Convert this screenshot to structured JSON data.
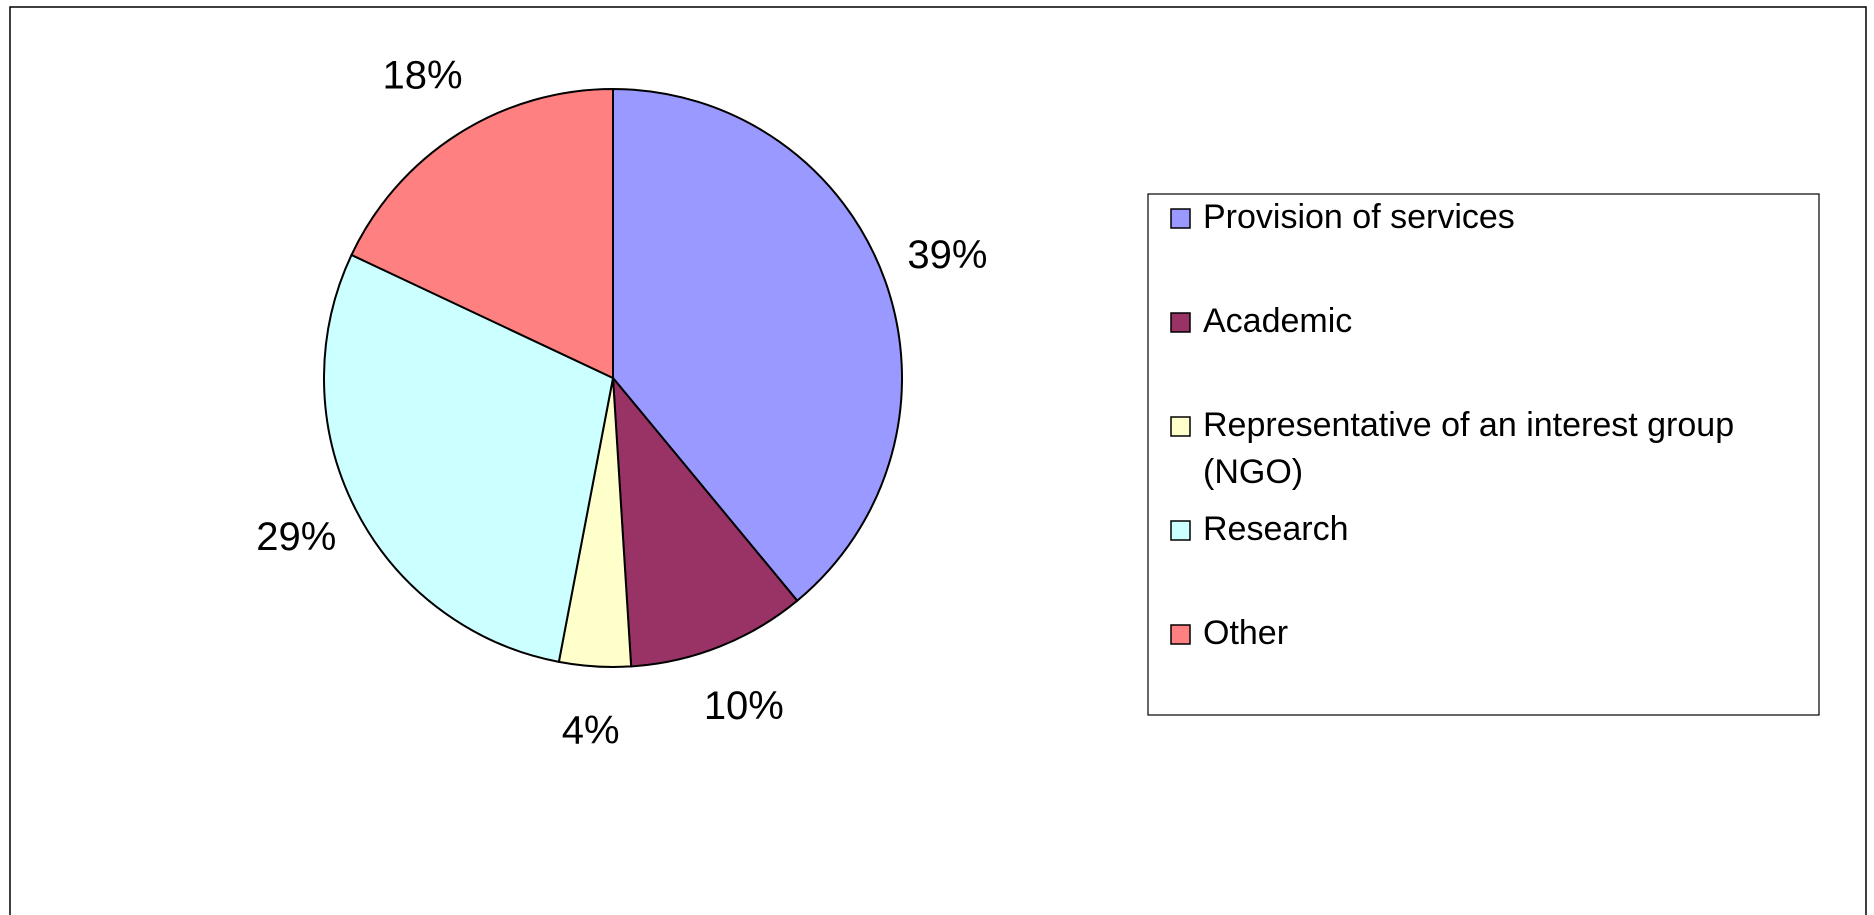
{
  "chart_data": {
    "type": "pie",
    "categories": [
      "Provision of services",
      "Academic",
      "Representative of an interest group (NGO)",
      "Research",
      "Other"
    ],
    "values": [
      39,
      10,
      4,
      29,
      18
    ],
    "value_labels": [
      "39%",
      "10%",
      "4%",
      "29%",
      "18%"
    ],
    "colors": [
      "#9999ff",
      "#993366",
      "#ffffcc",
      "#ccffff",
      "#ff8080"
    ],
    "legend": "right"
  }
}
